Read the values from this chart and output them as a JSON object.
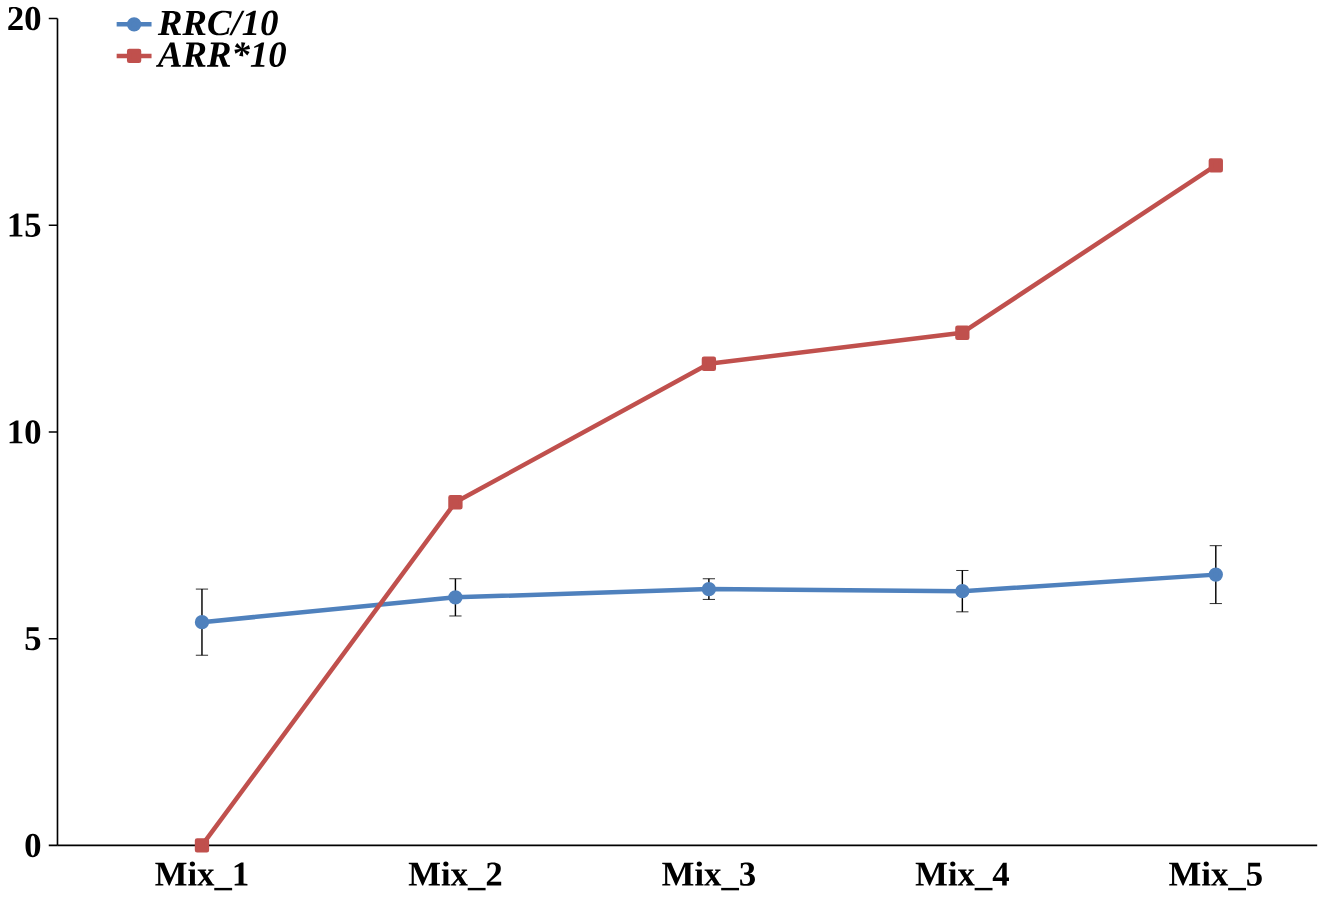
{
  "chart_data": {
    "type": "line",
    "categories": [
      "Mix_1",
      "Mix_2",
      "Mix_3",
      "Mix_4",
      "Mix_5"
    ],
    "series": [
      {
        "name": "RRC/10",
        "color": "#4f81bd",
        "marker": "circle",
        "values": [
          5.4,
          6.0,
          6.2,
          6.15,
          6.55
        ],
        "errors": [
          0.8,
          0.45,
          0.25,
          0.5,
          0.7
        ]
      },
      {
        "name": "ARR*10",
        "color": "#c0504d",
        "marker": "square",
        "values": [
          0,
          8.3,
          11.65,
          12.4,
          16.45
        ]
      }
    ],
    "ylim": [
      0,
      20
    ],
    "yticks": [
      0,
      5,
      10,
      15,
      20
    ],
    "legend": "top left",
    "grid": false
  }
}
